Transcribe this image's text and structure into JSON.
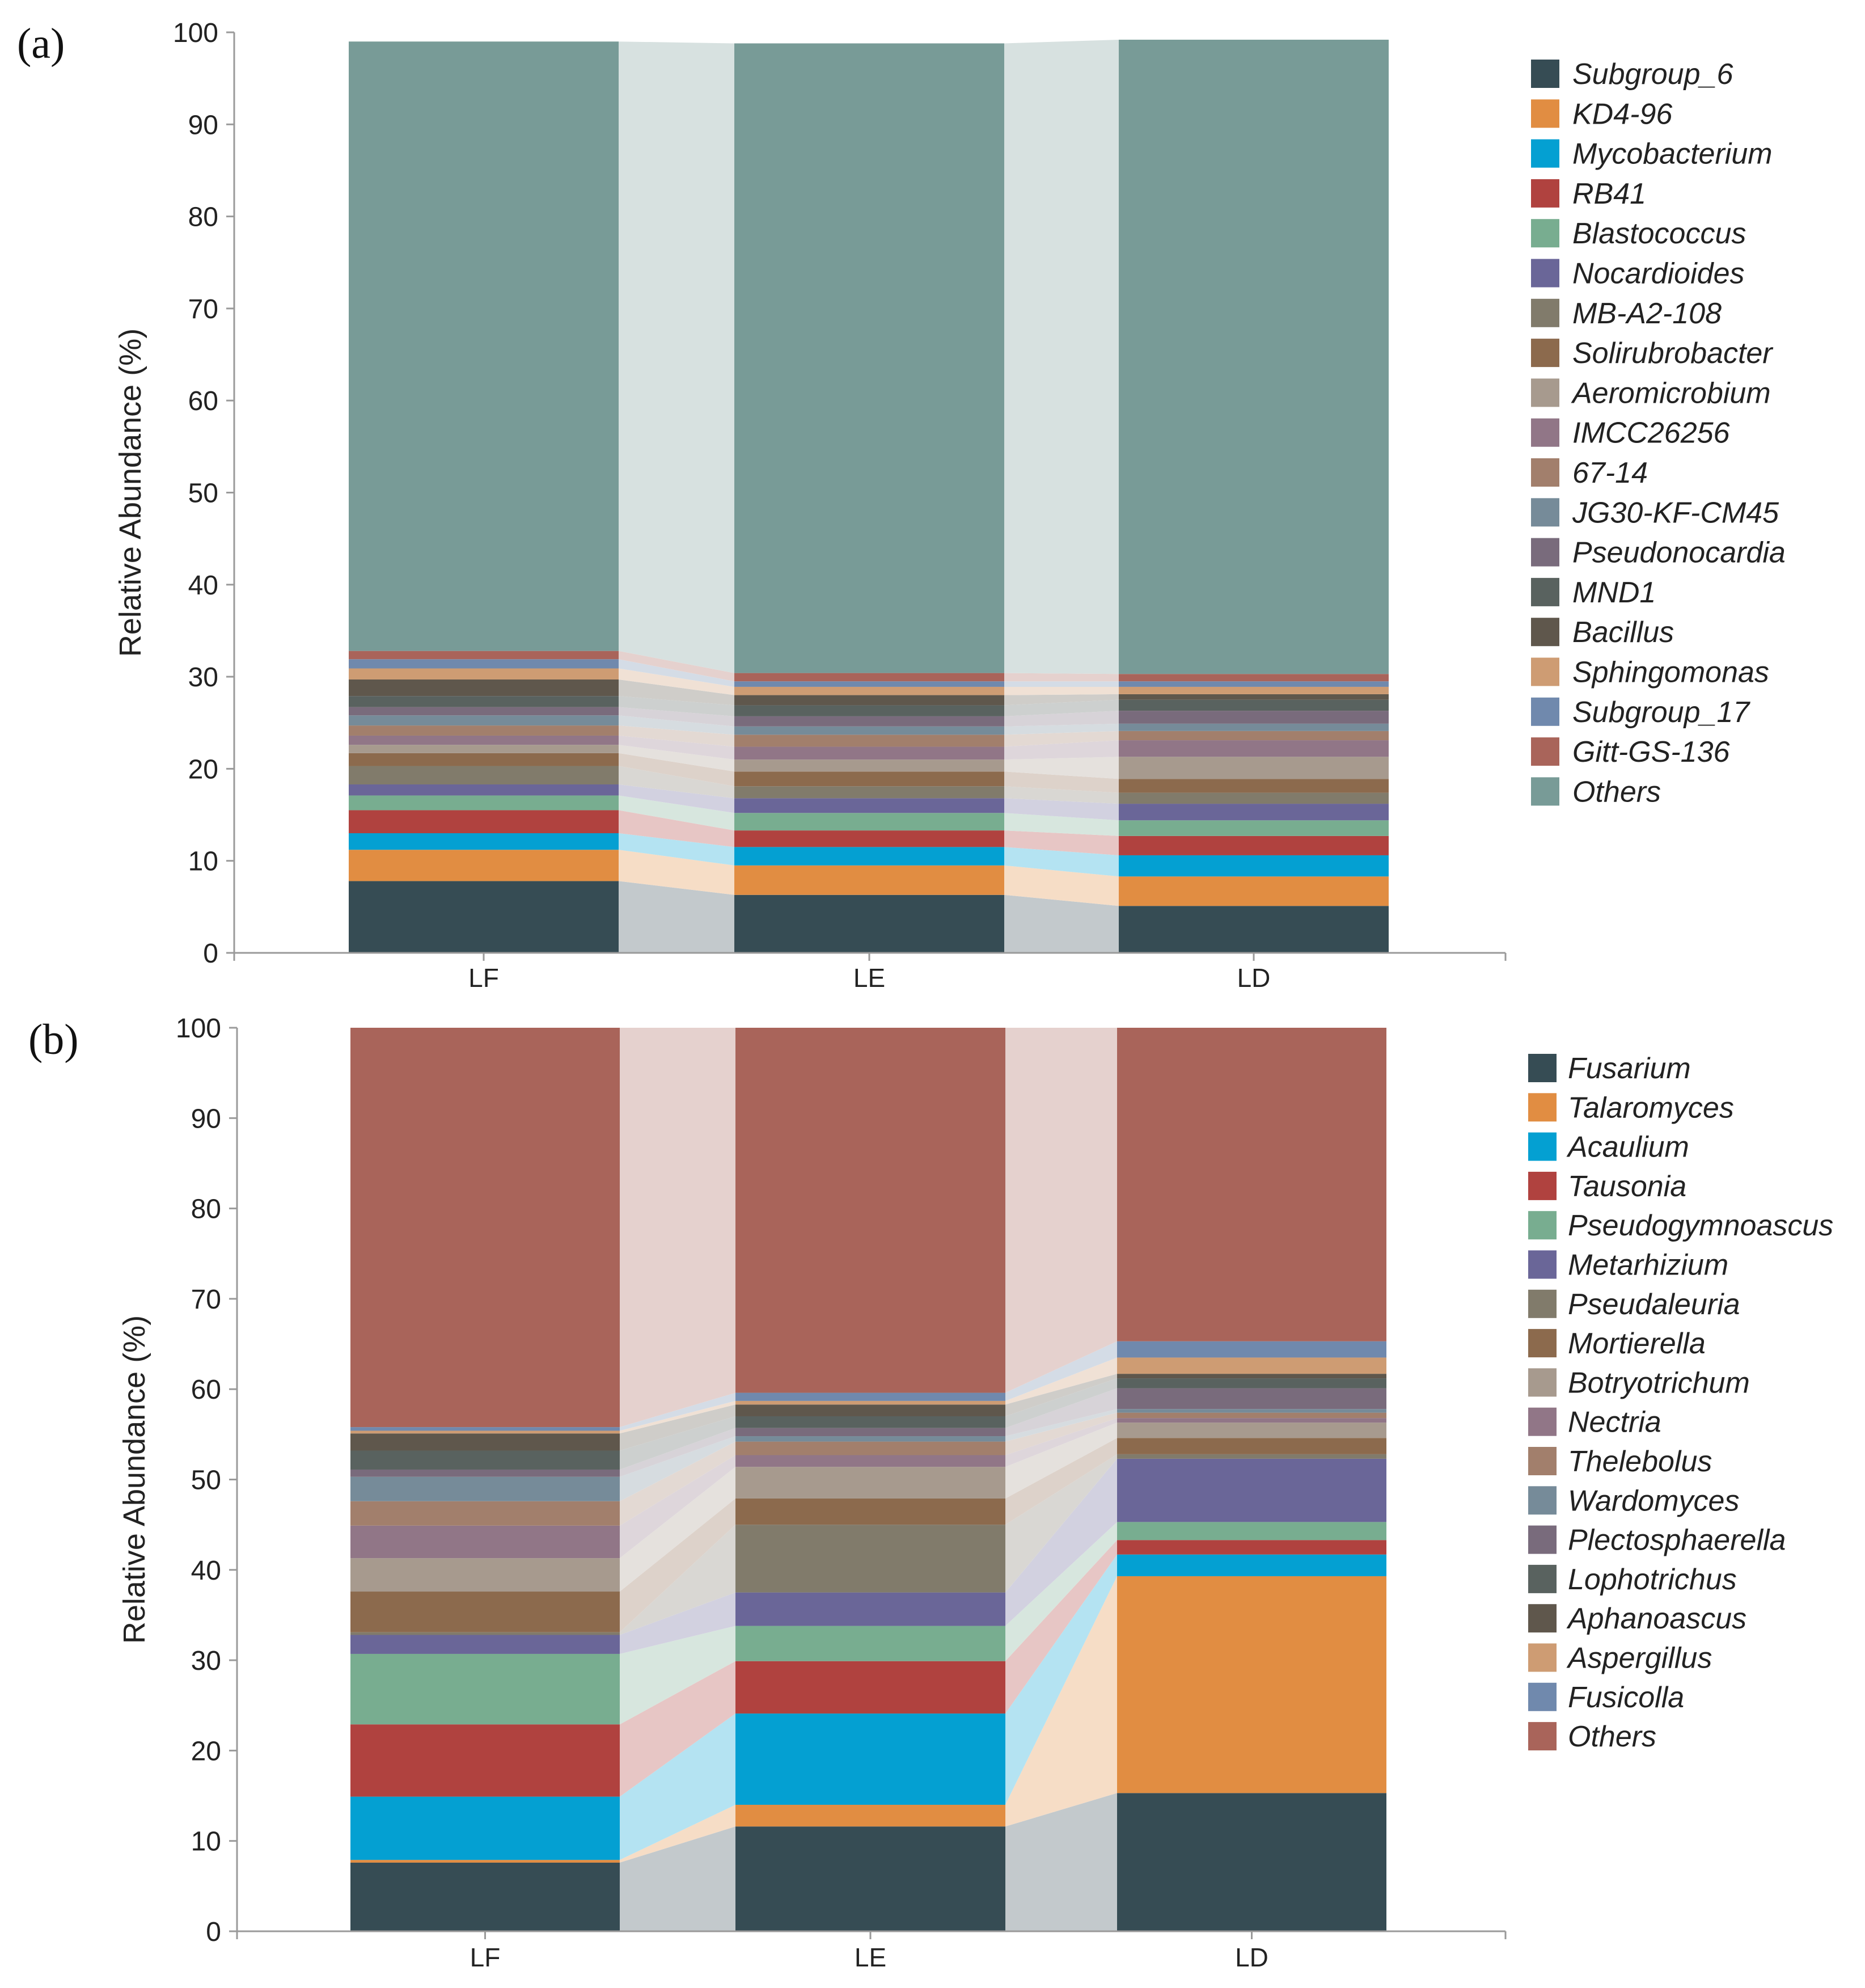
{
  "chart_data": [
    {
      "panel_label": "(a)",
      "type": "stacked-bar",
      "ylabel": "Relative Abundance (%)",
      "ylim": [
        0,
        100
      ],
      "yticks": [
        "0",
        "10",
        "20",
        "30",
        "40",
        "50",
        "60",
        "70",
        "80",
        "90",
        "100"
      ],
      "categories": [
        "LF",
        "LE",
        "LD"
      ],
      "series": [
        {
          "name": "Subgroup_6",
          "color": "#364c54",
          "values": [
            7.8,
            6.3,
            5.1
          ]
        },
        {
          "name": "KD4-96",
          "color": "#e18d42",
          "values": [
            3.4,
            3.2,
            3.2
          ]
        },
        {
          "name": "Mycobacterium",
          "color": "#04a0d2",
          "values": [
            1.8,
            2.0,
            2.3
          ]
        },
        {
          "name": "RB41",
          "color": "#b0423f",
          "values": [
            2.5,
            1.8,
            2.1
          ]
        },
        {
          "name": "Blastococcus",
          "color": "#78ad90",
          "values": [
            1.6,
            1.9,
            1.7
          ]
        },
        {
          "name": "Nocardioides",
          "color": "#6a6698",
          "values": [
            1.2,
            1.6,
            1.8
          ]
        },
        {
          "name": "MB-A2-108",
          "color": "#817b6b",
          "values": [
            2.0,
            1.3,
            1.2
          ]
        },
        {
          "name": "Solirubrobacter",
          "color": "#8c6a4d",
          "values": [
            1.4,
            1.6,
            1.5
          ]
        },
        {
          "name": "Aeromicrobium",
          "color": "#a79a8e",
          "values": [
            0.9,
            1.3,
            2.4
          ]
        },
        {
          "name": "IMCC26256",
          "color": "#917687",
          "values": [
            1.0,
            1.4,
            1.8
          ]
        },
        {
          "name": "67-14",
          "color": "#a27f6c",
          "values": [
            1.1,
            1.3,
            1.0
          ]
        },
        {
          "name": "JG30-KF-CM45",
          "color": "#768b99",
          "values": [
            1.1,
            0.9,
            0.8
          ]
        },
        {
          "name": "Pseudonocardia",
          "color": "#796b7c",
          "values": [
            0.9,
            1.1,
            1.4
          ]
        },
        {
          "name": "MND1",
          "color": "#59625f",
          "values": [
            1.2,
            1.2,
            1.2
          ]
        },
        {
          "name": "Bacillus",
          "color": "#5f574c",
          "values": [
            1.8,
            1.1,
            0.6
          ]
        },
        {
          "name": "Sphingomonas",
          "color": "#ce9c73",
          "values": [
            1.2,
            0.9,
            0.8
          ]
        },
        {
          "name": "Subgroup_17",
          "color": "#7089ad",
          "values": [
            1.0,
            0.6,
            0.6
          ]
        },
        {
          "name": "Gitt-GS-136",
          "color": "#a9645a",
          "values": [
            0.9,
            0.9,
            0.8
          ]
        },
        {
          "name": "Others",
          "color": "#789b97",
          "values": [
            66.2,
            68.4,
            68.9
          ]
        }
      ]
    },
    {
      "panel_label": "(b)",
      "type": "stacked-bar",
      "ylabel": "Relative Abundance (%)",
      "ylim": [
        0,
        100
      ],
      "yticks": [
        "0",
        "10",
        "20",
        "30",
        "40",
        "50",
        "60",
        "70",
        "80",
        "90",
        "100"
      ],
      "categories": [
        "LF",
        "LE",
        "LD"
      ],
      "series": [
        {
          "name": "Fusarium",
          "color": "#364c54",
          "values": [
            7.6,
            11.6,
            15.3
          ]
        },
        {
          "name": "Talaromyces",
          "color": "#e18d42",
          "values": [
            0.3,
            2.4,
            24.0
          ]
        },
        {
          "name": "Acaulium",
          "color": "#04a0d2",
          "values": [
            7.0,
            10.1,
            2.4
          ]
        },
        {
          "name": "Tausonia",
          "color": "#b0423f",
          "values": [
            8.0,
            5.8,
            1.6
          ]
        },
        {
          "name": "Pseudogymnoascus",
          "color": "#78ad90",
          "values": [
            7.8,
            3.9,
            2.0
          ]
        },
        {
          "name": "Metarhizium",
          "color": "#6a6698",
          "values": [
            2.1,
            3.7,
            7.0
          ]
        },
        {
          "name": "Pseudaleuria",
          "color": "#817b6b",
          "values": [
            0.3,
            7.5,
            0.5
          ]
        },
        {
          "name": "Mortierella",
          "color": "#8c6a4d",
          "values": [
            4.5,
            2.9,
            1.8
          ]
        },
        {
          "name": "Botryotrichum",
          "color": "#a79a8e",
          "values": [
            3.7,
            3.5,
            1.7
          ]
        },
        {
          "name": "Nectria",
          "color": "#917687",
          "values": [
            3.6,
            1.3,
            0.5
          ]
        },
        {
          "name": "Thelebolus",
          "color": "#a27f6c",
          "values": [
            2.7,
            1.5,
            0.6
          ]
        },
        {
          "name": "Wardomyces",
          "color": "#768b99",
          "values": [
            2.7,
            0.6,
            0.4
          ]
        },
        {
          "name": "Plectosphaerella",
          "color": "#796b7c",
          "values": [
            0.8,
            0.9,
            2.3
          ]
        },
        {
          "name": "Lophotrichus",
          "color": "#59625f",
          "values": [
            2.1,
            1.3,
            1.1
          ]
        },
        {
          "name": "Aphanoascus",
          "color": "#5f574c",
          "values": [
            1.9,
            1.3,
            0.5
          ]
        },
        {
          "name": "Aspergillus",
          "color": "#ce9c73",
          "values": [
            0.3,
            0.4,
            1.8
          ]
        },
        {
          "name": "Fusicolla",
          "color": "#7089ad",
          "values": [
            0.4,
            0.9,
            1.8
          ]
        },
        {
          "name": "Others",
          "color": "#a9645a",
          "values": [
            44.2,
            40.4,
            34.7
          ]
        }
      ]
    }
  ]
}
